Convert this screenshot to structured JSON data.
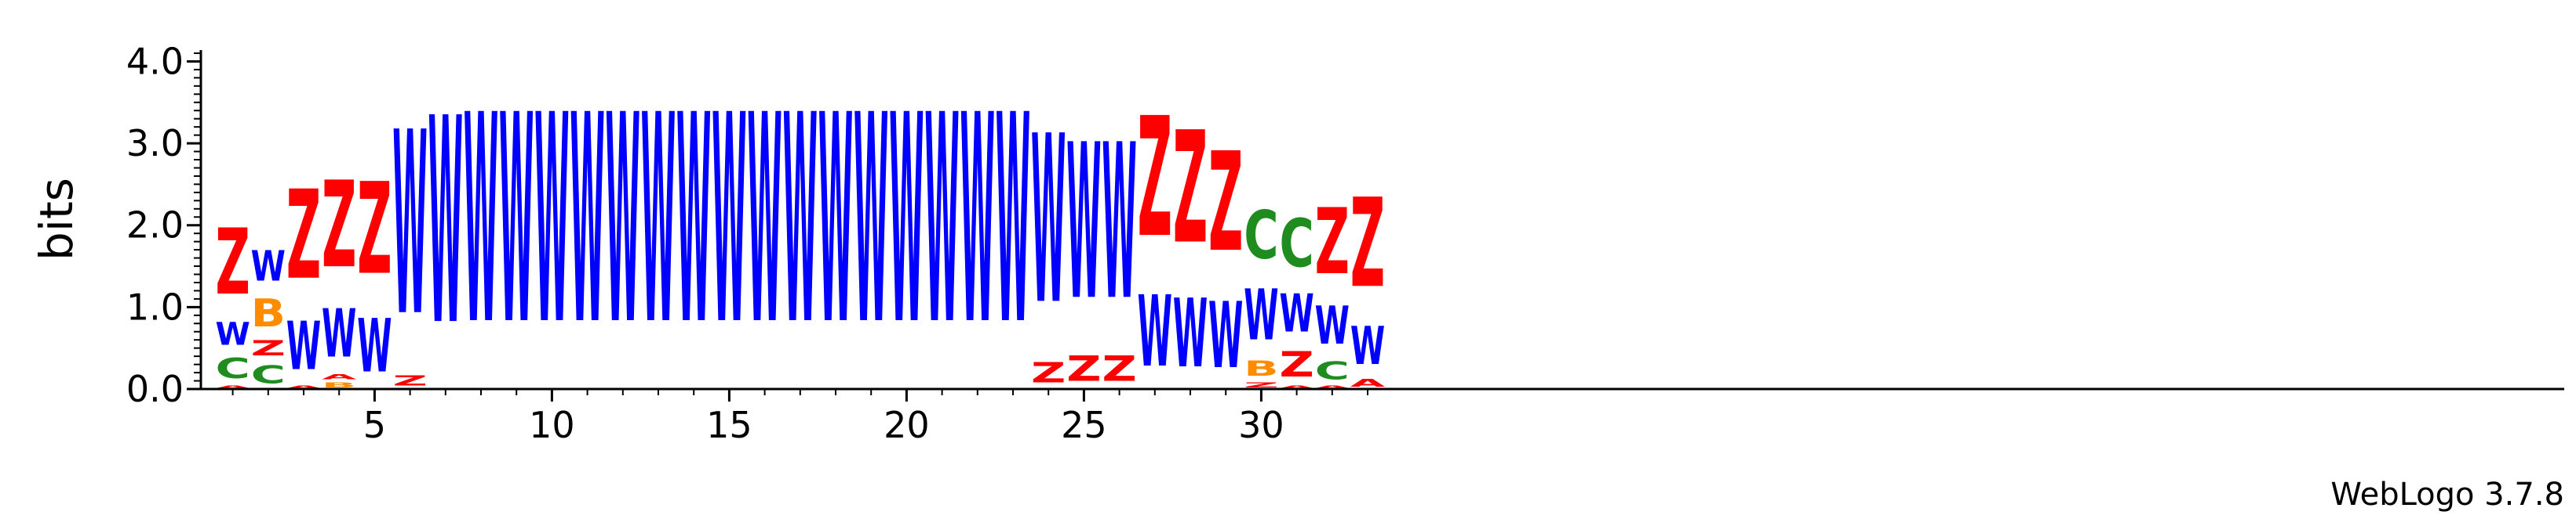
{
  "chart_data": {
    "type": "sequence-logo",
    "ylabel": "bits",
    "ylim": [
      0,
      4.1
    ],
    "yticks": [
      "0.0",
      "1.0",
      "2.0",
      "3.0",
      "4.0"
    ],
    "xticks": [
      "5",
      "10",
      "15",
      "20",
      "25",
      "30"
    ],
    "credit": "WebLogo 3.7.8",
    "colors": {
      "Z": "#ff0000",
      "W": "#0000ff",
      "C": "#1e8c1e",
      "B": "#ff8c00",
      "A": "#ff0000"
    },
    "positions": [
      {
        "position": 1,
        "stack": [
          {
            "letter": "A",
            "bits": 0.05
          },
          {
            "letter": "C",
            "bits": 0.4
          },
          {
            "letter": "W",
            "bits": 0.45
          },
          {
            "letter": "Z",
            "bits": 1.3
          }
        ]
      },
      {
        "position": 2,
        "stack": [
          {
            "letter": "C",
            "bits": 0.35
          },
          {
            "letter": "Z",
            "bits": 0.3
          },
          {
            "letter": "B",
            "bits": 0.55
          },
          {
            "letter": "W",
            "bits": 0.6
          }
        ]
      },
      {
        "position": 3,
        "stack": [
          {
            "letter": "A",
            "bits": 0.05
          },
          {
            "letter": "W",
            "bits": 0.95
          },
          {
            "letter": "Z",
            "bits": 1.75
          }
        ]
      },
      {
        "position": 4,
        "stack": [
          {
            "letter": "B",
            "bits": 0.1
          },
          {
            "letter": "A",
            "bits": 0.1
          },
          {
            "letter": "W",
            "bits": 0.95
          },
          {
            "letter": "Z",
            "bits": 1.7
          }
        ]
      },
      {
        "position": 5,
        "stack": [
          {
            "letter": "W",
            "bits": 1.05
          },
          {
            "letter": "Z",
            "bits": 1.8
          }
        ]
      },
      {
        "position": 6,
        "stack": [
          {
            "letter": "Z",
            "bits": 0.2
          },
          {
            "letter": "W",
            "bits": 3.6
          }
        ]
      },
      {
        "position": 7,
        "stack": [
          {
            "letter": "W",
            "bits": 4.05
          }
        ]
      },
      {
        "position": 8,
        "stack": [
          {
            "letter": "W",
            "bits": 4.1
          }
        ]
      },
      {
        "position": 9,
        "stack": [
          {
            "letter": "W",
            "bits": 4.1
          }
        ]
      },
      {
        "position": 10,
        "stack": [
          {
            "letter": "W",
            "bits": 4.1
          }
        ]
      },
      {
        "position": 11,
        "stack": [
          {
            "letter": "W",
            "bits": 4.1
          }
        ]
      },
      {
        "position": 12,
        "stack": [
          {
            "letter": "W",
            "bits": 4.1
          }
        ]
      },
      {
        "position": 13,
        "stack": [
          {
            "letter": "W",
            "bits": 4.1
          }
        ]
      },
      {
        "position": 14,
        "stack": [
          {
            "letter": "W",
            "bits": 4.1
          }
        ]
      },
      {
        "position": 15,
        "stack": [
          {
            "letter": "W",
            "bits": 4.1
          }
        ]
      },
      {
        "position": 16,
        "stack": [
          {
            "letter": "W",
            "bits": 4.1
          }
        ]
      },
      {
        "position": 17,
        "stack": [
          {
            "letter": "W",
            "bits": 4.1
          }
        ]
      },
      {
        "position": 18,
        "stack": [
          {
            "letter": "W",
            "bits": 4.1
          }
        ]
      },
      {
        "position": 19,
        "stack": [
          {
            "letter": "W",
            "bits": 4.1
          }
        ]
      },
      {
        "position": 20,
        "stack": [
          {
            "letter": "W",
            "bits": 4.1
          }
        ]
      },
      {
        "position": 21,
        "stack": [
          {
            "letter": "W",
            "bits": 4.1
          }
        ]
      },
      {
        "position": 22,
        "stack": [
          {
            "letter": "W",
            "bits": 4.1
          }
        ]
      },
      {
        "position": 23,
        "stack": [
          {
            "letter": "W",
            "bits": 4.1
          }
        ]
      },
      {
        "position": 24,
        "stack": [
          {
            "letter": "Z",
            "bits": 0.4
          },
          {
            "letter": "W",
            "bits": 3.3
          }
        ]
      },
      {
        "position": 25,
        "stack": [
          {
            "letter": "Z",
            "bits": 0.5
          },
          {
            "letter": "W",
            "bits": 3.05
          }
        ]
      },
      {
        "position": 26,
        "stack": [
          {
            "letter": "Z",
            "bits": 0.5
          },
          {
            "letter": "W",
            "bits": 3.05
          }
        ]
      },
      {
        "position": 27,
        "stack": [
          {
            "letter": "W",
            "bits": 1.4
          },
          {
            "letter": "Z",
            "bits": 2.35
          }
        ]
      },
      {
        "position": 28,
        "stack": [
          {
            "letter": "W",
            "bits": 1.35
          },
          {
            "letter": "Z",
            "bits": 2.2
          }
        ]
      },
      {
        "position": 29,
        "stack": [
          {
            "letter": "W",
            "bits": 1.3
          },
          {
            "letter": "Z",
            "bits": 1.95
          }
        ]
      },
      {
        "position": 30,
        "stack": [
          {
            "letter": "Z",
            "bits": 0.1
          },
          {
            "letter": "B",
            "bits": 0.3
          },
          {
            "letter": "W",
            "bits": 1.0
          },
          {
            "letter": "C",
            "bits": 0.95
          }
        ]
      },
      {
        "position": 31,
        "stack": [
          {
            "letter": "A",
            "bits": 0.05
          },
          {
            "letter": "Z",
            "bits": 0.5
          },
          {
            "letter": "W",
            "bits": 0.75
          },
          {
            "letter": "C",
            "bits": 0.95
          }
        ]
      },
      {
        "position": 32,
        "stack": [
          {
            "letter": "A",
            "bits": 0.05
          },
          {
            "letter": "C",
            "bits": 0.35
          },
          {
            "letter": "W",
            "bits": 0.75
          },
          {
            "letter": "Z",
            "bits": 1.3
          }
        ]
      },
      {
        "position": 33,
        "stack": [
          {
            "letter": "A",
            "bits": 0.15
          },
          {
            "letter": "W",
            "bits": 0.75
          },
          {
            "letter": "Z",
            "bits": 1.75
          }
        ]
      }
    ]
  }
}
